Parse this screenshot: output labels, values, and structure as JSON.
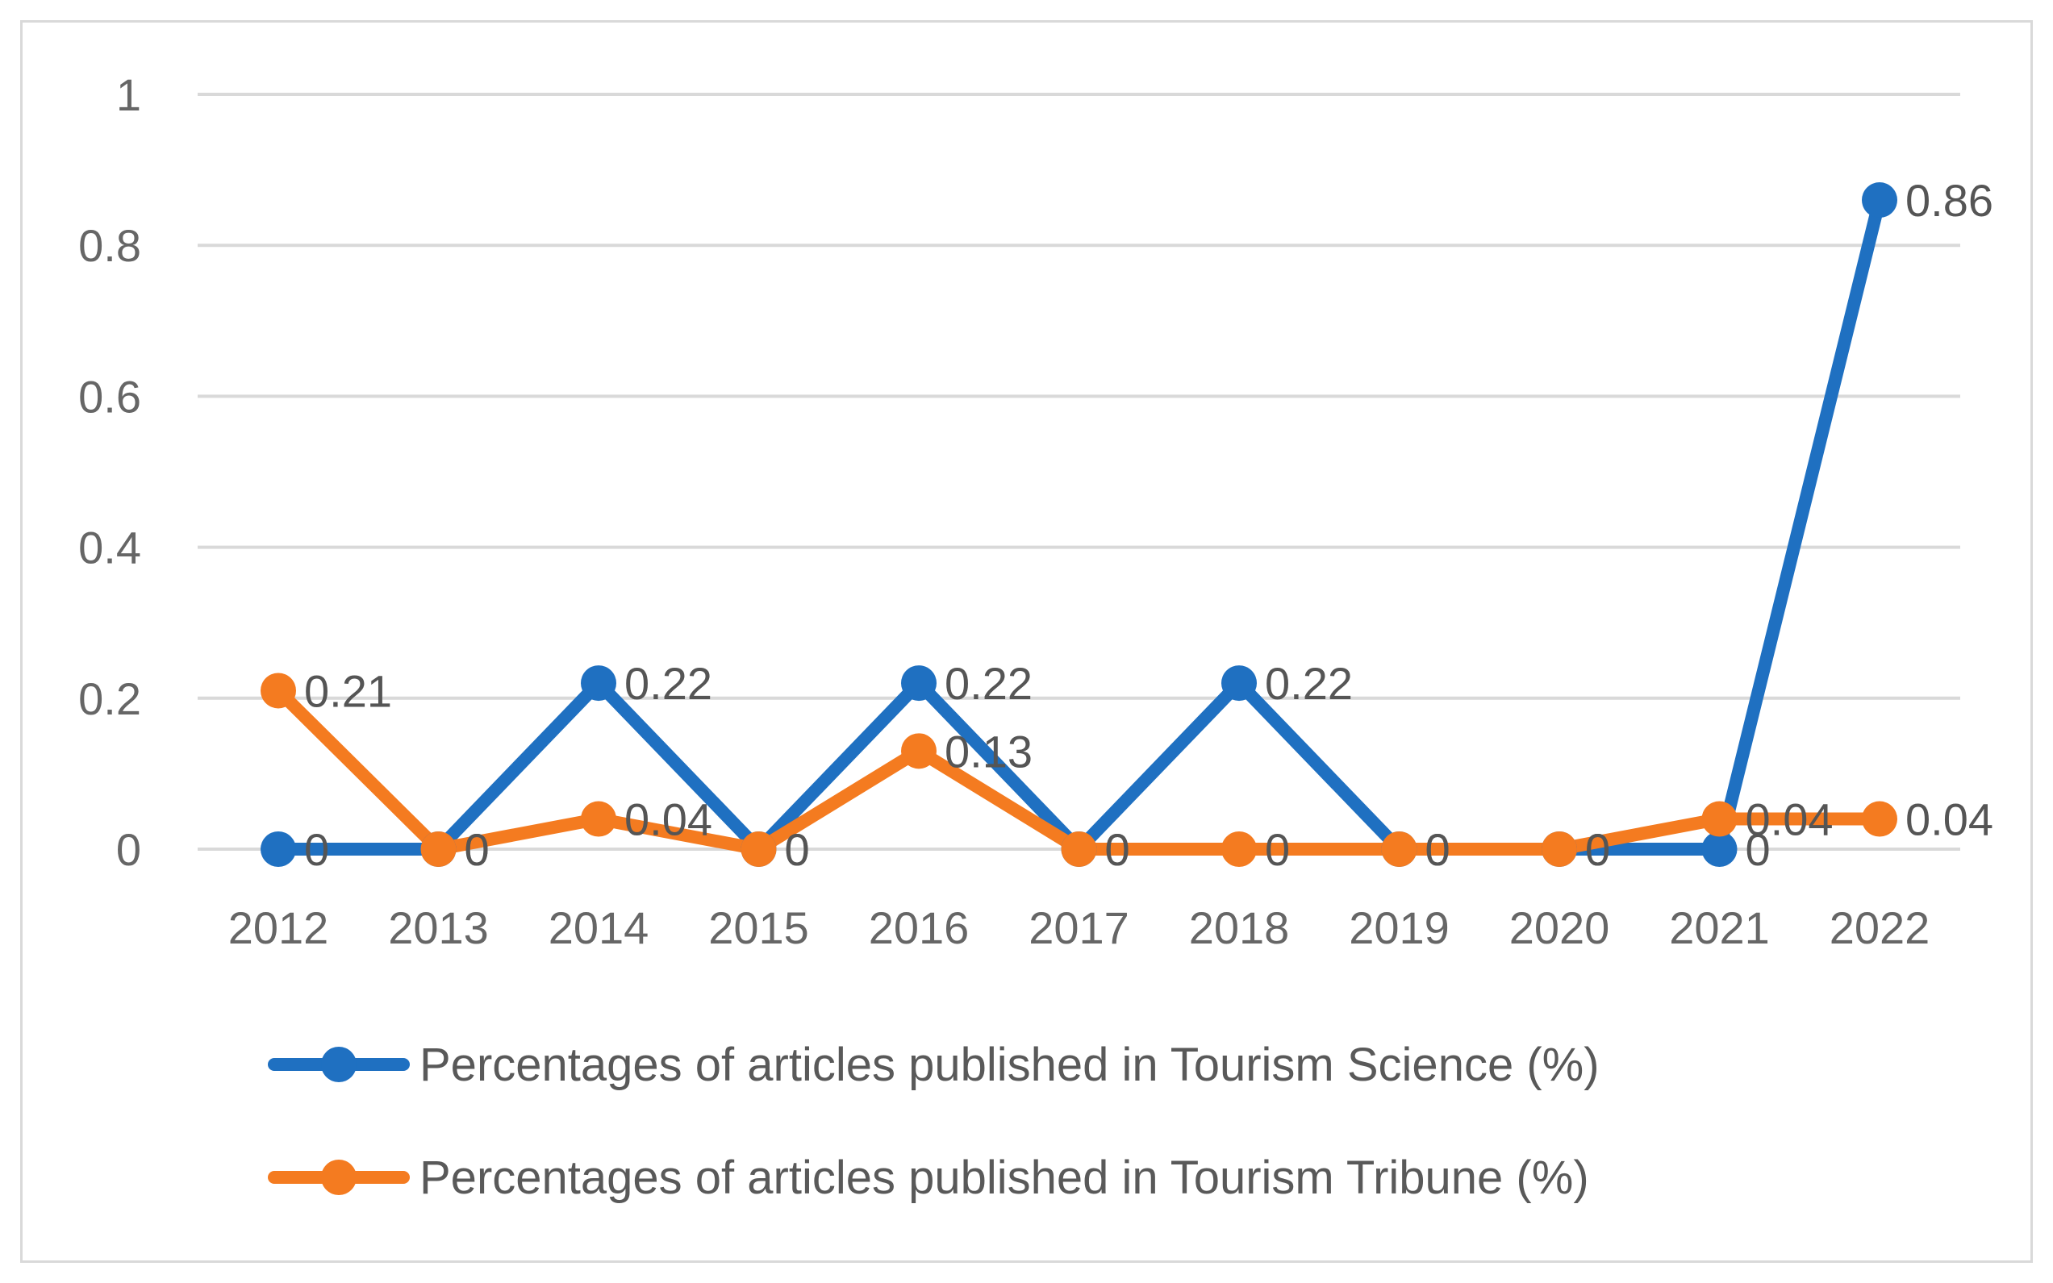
{
  "chart_data": {
    "type": "line",
    "title": "",
    "xlabel": "",
    "ylabel": "",
    "categories": [
      "2012",
      "2013",
      "2014",
      "2015",
      "2016",
      "2017",
      "2018",
      "2019",
      "2020",
      "2021",
      "2022"
    ],
    "ylim": [
      0,
      1
    ],
    "yticks": [
      "0",
      "0.2",
      "0.4",
      "0.6",
      "0.8",
      "1"
    ],
    "grid": "horizontal",
    "legend_position": "bottom",
    "series": [
      {
        "name": "Percentages of articles published in Tourism Science (%)",
        "color": "#1f70c1",
        "values": [
          0,
          0,
          0.22,
          0,
          0.22,
          0,
          0.22,
          0,
          0,
          0,
          0.86
        ],
        "labels": [
          "0",
          "0",
          "0.22",
          "0",
          "0.22",
          "0",
          "0.22",
          "0",
          "0",
          "0",
          "0.86"
        ]
      },
      {
        "name": "Percentages of articles published in Tourism Tribune (%)",
        "color": "#f47b20",
        "values": [
          0.21,
          0,
          0.04,
          0,
          0.13,
          0,
          0,
          0,
          0,
          0.04,
          0.04
        ],
        "labels": [
          "0.21",
          "0",
          "0.04",
          "0",
          "0.13",
          "0",
          "0",
          "0",
          "0",
          "0.04",
          "0.04"
        ]
      }
    ]
  }
}
